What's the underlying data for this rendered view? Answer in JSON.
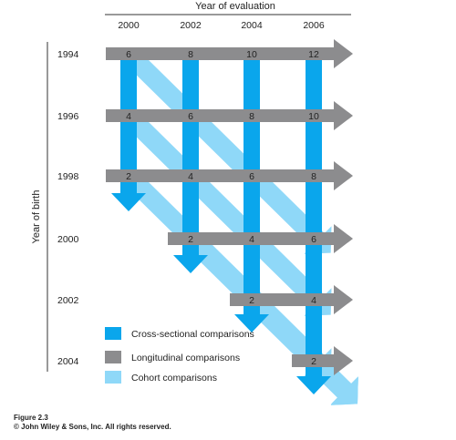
{
  "diagram": {
    "top_axis_title": "Year of evaluation",
    "left_axis_title": "Year of birth",
    "evaluation_years": [
      "2000",
      "2002",
      "2004",
      "2006"
    ],
    "birth_years": [
      "1994",
      "1996",
      "1998",
      "2000",
      "2002",
      "2004"
    ],
    "ages": [
      [
        "6",
        "8",
        "10",
        "12"
      ],
      [
        "4",
        "6",
        "8",
        "10"
      ],
      [
        "2",
        "4",
        "6",
        "8"
      ],
      [
        "",
        "2",
        "4",
        "6"
      ],
      [
        "",
        "",
        "2",
        "4"
      ],
      [
        "",
        "",
        "",
        "2"
      ]
    ],
    "legend": {
      "cross_sectional": "Cross-sectional comparisons",
      "longitudinal": "Longitudinal comparisons",
      "cohort": "Cohort comparisons"
    },
    "colors": {
      "cross_sectional": "#0aa6ec",
      "longitudinal": "#8c8c8e",
      "cohort": "#8fd8f8"
    }
  },
  "caption": {
    "figure": "Figure 2.3",
    "copyright": "© John Wiley & Sons, Inc. All rights reserved."
  }
}
